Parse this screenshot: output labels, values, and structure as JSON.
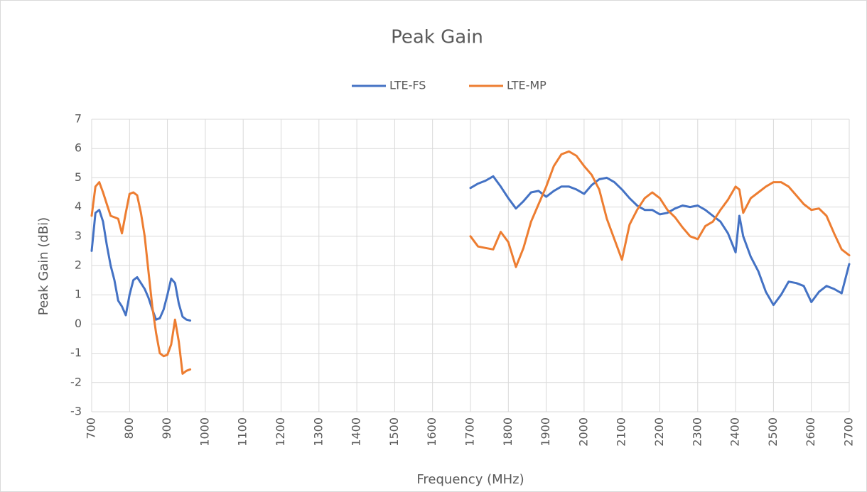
{
  "chart_data": {
    "type": "line",
    "title": "Peak Gain",
    "xlabel": "Frequency (MHz)",
    "ylabel": "Peak Gain (dBi)",
    "x": [
      700,
      710,
      720,
      730,
      740,
      750,
      760,
      770,
      780,
      790,
      800,
      810,
      820,
      830,
      840,
      850,
      860,
      870,
      880,
      890,
      900,
      910,
      920,
      930,
      940,
      950,
      960,
      1000,
      1700,
      1720,
      1740,
      1760,
      1780,
      1800,
      1820,
      1840,
      1860,
      1880,
      1900,
      1920,
      1940,
      1960,
      1980,
      2000,
      2020,
      2040,
      2060,
      2080,
      2100,
      2120,
      2140,
      2160,
      2180,
      2200,
      2220,
      2240,
      2260,
      2280,
      2300,
      2320,
      2340,
      2360,
      2380,
      2400,
      2410,
      2420,
      2440,
      2460,
      2480,
      2500,
      2520,
      2540,
      2560,
      2580,
      2600,
      2620,
      2640,
      2660,
      2680,
      2700
    ],
    "series": [
      {
        "name": "LTE-FS",
        "color": "#4472c4",
        "values": [
          2.5,
          3.8,
          3.9,
          3.5,
          2.7,
          2.0,
          1.5,
          0.8,
          0.6,
          0.3,
          1.0,
          1.5,
          1.6,
          1.4,
          1.2,
          0.9,
          0.5,
          0.15,
          0.2,
          0.5,
          1.0,
          1.55,
          1.4,
          0.7,
          0.25,
          0.15,
          0.12,
          null,
          4.65,
          4.8,
          4.9,
          5.05,
          4.7,
          4.3,
          3.95,
          4.2,
          4.5,
          4.55,
          4.35,
          4.55,
          4.7,
          4.7,
          4.6,
          4.45,
          4.75,
          4.95,
          5.0,
          4.85,
          4.6,
          4.3,
          4.05,
          3.9,
          3.9,
          3.75,
          3.8,
          3.95,
          4.05,
          4.0,
          4.05,
          3.9,
          3.7,
          3.5,
          3.1,
          2.45,
          3.7,
          3.0,
          2.3,
          1.8,
          1.1,
          0.65,
          1.0,
          1.45,
          1.4,
          1.3,
          0.75,
          1.1,
          1.3,
          1.2,
          1.05,
          2.05
        ]
      },
      {
        "name": "LTE-MP",
        "color": "#ed7d31",
        "values": [
          3.7,
          4.7,
          4.85,
          4.5,
          4.1,
          3.7,
          3.65,
          3.6,
          3.1,
          3.8,
          4.45,
          4.5,
          4.4,
          3.8,
          3.0,
          1.8,
          0.6,
          -0.3,
          -1.0,
          -1.1,
          -1.05,
          -0.7,
          0.15,
          -0.6,
          -1.7,
          -1.6,
          -1.55,
          null,
          3.0,
          2.65,
          2.6,
          2.55,
          3.15,
          2.8,
          1.95,
          2.6,
          3.5,
          4.1,
          4.7,
          5.4,
          5.8,
          5.9,
          5.75,
          5.4,
          5.1,
          4.6,
          3.6,
          2.9,
          2.2,
          3.4,
          3.9,
          4.3,
          4.5,
          4.3,
          3.9,
          3.65,
          3.3,
          3.0,
          2.9,
          3.35,
          3.5,
          3.9,
          4.25,
          4.7,
          4.6,
          3.8,
          4.3,
          4.5,
          4.7,
          4.85,
          4.85,
          4.7,
          4.4,
          4.1,
          3.9,
          3.95,
          3.7,
          3.1,
          2.55,
          2.35
        ]
      }
    ],
    "xlim": [
      700,
      2700
    ],
    "xticks": [
      700,
      800,
      900,
      1000,
      1100,
      1200,
      1300,
      1400,
      1500,
      1600,
      1700,
      1800,
      1900,
      2000,
      2100,
      2200,
      2300,
      2400,
      2500,
      2600,
      2700
    ],
    "ylim": [
      -3,
      7
    ],
    "yticks": [
      -3,
      -2,
      -1,
      0,
      1,
      2,
      3,
      4,
      5,
      6,
      7
    ],
    "grid": true,
    "legend": "top"
  }
}
